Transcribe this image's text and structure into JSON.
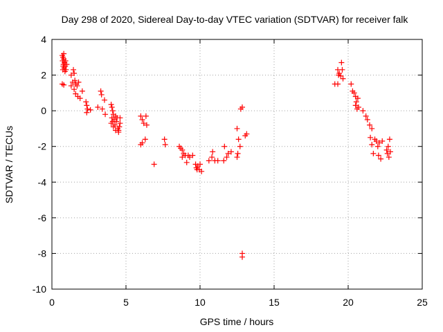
{
  "chart_data": {
    "type": "scatter",
    "title": "Day 298 of 2020, Sidereal Day-to-day VTEC variation (SDTVAR) for receiver falk",
    "xlabel": "GPS time / hours",
    "ylabel": "SDTVAR / TECUs",
    "xlim": [
      0,
      25
    ],
    "ylim": [
      -10,
      4
    ],
    "xticks": [
      "0",
      "5",
      "10",
      "15",
      "20",
      "25"
    ],
    "yticks": [
      "-10",
      "-8",
      "-6",
      "-4",
      "-2",
      "0",
      "2",
      "4"
    ],
    "grid": true,
    "marker": "plus",
    "color": "#ff0000",
    "series": [
      {
        "name": "SDTVAR",
        "points": [
          [
            0.7,
            3.1
          ],
          [
            0.75,
            3.0
          ],
          [
            0.8,
            2.9
          ],
          [
            0.72,
            2.8
          ],
          [
            0.85,
            2.7
          ],
          [
            0.78,
            2.6
          ],
          [
            0.9,
            2.5
          ],
          [
            0.82,
            2.4
          ],
          [
            0.95,
            2.3
          ],
          [
            0.88,
            2.2
          ],
          [
            0.76,
            2.5
          ],
          [
            0.92,
            2.8
          ],
          [
            0.8,
            3.2
          ],
          [
            1.0,
            2.6
          ],
          [
            0.74,
            2.3
          ],
          [
            0.7,
            1.5
          ],
          [
            0.8,
            1.45
          ],
          [
            1.3,
            2.0
          ],
          [
            1.45,
            2.3
          ],
          [
            1.5,
            2.1
          ],
          [
            1.4,
            1.6
          ],
          [
            1.55,
            1.7
          ],
          [
            1.6,
            1.5
          ],
          [
            1.7,
            1.4
          ],
          [
            1.8,
            1.6
          ],
          [
            1.5,
            1.2
          ],
          [
            1.6,
            0.95
          ],
          [
            1.75,
            0.8
          ],
          [
            1.9,
            0.7
          ],
          [
            2.05,
            1.1
          ],
          [
            1.3,
            1.4
          ],
          [
            2.3,
            0.5
          ],
          [
            2.35,
            0.3
          ],
          [
            2.4,
            0.1
          ],
          [
            2.6,
            0.05
          ],
          [
            2.35,
            -0.1
          ],
          [
            3.1,
            0.2
          ],
          [
            3.3,
            1.1
          ],
          [
            3.35,
            0.9
          ],
          [
            3.4,
            0.1
          ],
          [
            3.55,
            0.6
          ],
          [
            3.6,
            -0.2
          ],
          [
            4.0,
            0.35
          ],
          [
            4.05,
            0.2
          ],
          [
            4.1,
            0.0
          ],
          [
            4.15,
            -0.2
          ],
          [
            4.05,
            -0.4
          ],
          [
            4.2,
            -0.5
          ],
          [
            4.0,
            -0.7
          ],
          [
            4.15,
            -0.9
          ],
          [
            4.3,
            -0.3
          ],
          [
            4.35,
            -0.6
          ],
          [
            4.25,
            -0.8
          ],
          [
            4.4,
            -0.4
          ],
          [
            4.45,
            -1.0
          ],
          [
            4.5,
            -1.2
          ],
          [
            4.6,
            -0.7
          ],
          [
            4.55,
            -0.9
          ],
          [
            4.3,
            -1.1
          ],
          [
            4.6,
            -0.4
          ],
          [
            4.1,
            -0.6
          ],
          [
            4.5,
            -1.1
          ],
          [
            6.0,
            -0.3
          ],
          [
            6.1,
            -0.5
          ],
          [
            6.2,
            -0.7
          ],
          [
            6.35,
            -0.3
          ],
          [
            6.4,
            -0.8
          ],
          [
            6.0,
            -1.9
          ],
          [
            6.1,
            -1.8
          ],
          [
            6.3,
            -1.6
          ],
          [
            6.9,
            -3.0
          ],
          [
            7.6,
            -1.6
          ],
          [
            7.65,
            -1.9
          ],
          [
            8.6,
            -2.0
          ],
          [
            8.7,
            -2.1
          ],
          [
            8.8,
            -2.2
          ],
          [
            8.9,
            -2.4
          ],
          [
            8.8,
            -2.6
          ],
          [
            9.0,
            -2.5
          ],
          [
            9.1,
            -2.9
          ],
          [
            9.2,
            -2.5
          ],
          [
            9.3,
            -2.6
          ],
          [
            9.5,
            -2.5
          ],
          [
            9.7,
            -3.0
          ],
          [
            9.75,
            -3.2
          ],
          [
            9.8,
            -3.3
          ],
          [
            9.85,
            -3.1
          ],
          [
            9.95,
            -3.3
          ],
          [
            10.0,
            -3.0
          ],
          [
            10.1,
            -3.4
          ],
          [
            10.6,
            -2.8
          ],
          [
            10.8,
            -2.6
          ],
          [
            10.85,
            -2.3
          ],
          [
            11.0,
            -2.8
          ],
          [
            11.2,
            -2.8
          ],
          [
            11.6,
            -2.8
          ],
          [
            11.65,
            -2.0
          ],
          [
            11.8,
            -2.6
          ],
          [
            11.9,
            -2.4
          ],
          [
            12.1,
            -2.3
          ],
          [
            12.5,
            -1.0
          ],
          [
            12.5,
            -2.6
          ],
          [
            12.55,
            -2.4
          ],
          [
            12.6,
            -1.6
          ],
          [
            12.7,
            -2.0
          ],
          [
            12.75,
            0.1
          ],
          [
            12.85,
            0.2
          ],
          [
            13.05,
            -1.4
          ],
          [
            13.15,
            -1.3
          ],
          [
            12.85,
            -8.0
          ],
          [
            12.85,
            -8.2
          ],
          [
            19.1,
            1.5
          ],
          [
            19.3,
            1.5
          ],
          [
            19.3,
            2.3
          ],
          [
            19.35,
            2.0
          ],
          [
            19.4,
            2.1
          ],
          [
            19.5,
            1.95
          ],
          [
            19.55,
            2.7
          ],
          [
            19.6,
            2.3
          ],
          [
            19.65,
            1.8
          ],
          [
            20.2,
            1.5
          ],
          [
            20.3,
            1.1
          ],
          [
            20.4,
            1.0
          ],
          [
            20.5,
            0.8
          ],
          [
            20.55,
            0.5
          ],
          [
            20.6,
            0.1
          ],
          [
            20.5,
            0.3
          ],
          [
            20.65,
            0.7
          ],
          [
            20.7,
            0.2
          ],
          [
            21.0,
            0.0
          ],
          [
            21.2,
            -0.3
          ],
          [
            21.3,
            -0.5
          ],
          [
            21.45,
            -0.8
          ],
          [
            21.5,
            -1.5
          ],
          [
            21.6,
            -1.0
          ],
          [
            21.6,
            -1.9
          ],
          [
            21.7,
            -2.4
          ],
          [
            21.8,
            -1.6
          ],
          [
            21.9,
            -1.7
          ],
          [
            22.0,
            -2.0
          ],
          [
            22.05,
            -2.5
          ],
          [
            22.1,
            -1.8
          ],
          [
            22.2,
            -2.7
          ],
          [
            22.3,
            -1.7
          ],
          [
            22.6,
            -2.2
          ],
          [
            22.65,
            -2.4
          ],
          [
            22.7,
            -2.0
          ],
          [
            22.75,
            -2.6
          ],
          [
            22.8,
            -1.6
          ],
          [
            22.85,
            -2.3
          ]
        ]
      }
    ]
  }
}
